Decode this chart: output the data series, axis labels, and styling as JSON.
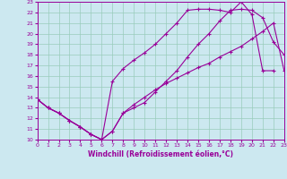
{
  "xlabel": "Windchill (Refroidissement éolien,°C)",
  "xlim": [
    0,
    23
  ],
  "ylim": [
    10,
    23
  ],
  "xticks": [
    0,
    1,
    2,
    3,
    4,
    5,
    6,
    7,
    8,
    9,
    10,
    11,
    12,
    13,
    14,
    15,
    16,
    17,
    18,
    19,
    20,
    21,
    22,
    23
  ],
  "yticks": [
    10,
    11,
    12,
    13,
    14,
    15,
    16,
    17,
    18,
    19,
    20,
    21,
    22,
    23
  ],
  "bg_color": "#cce8f0",
  "line_color": "#990099",
  "grid_color": "#99ccbb",
  "line1_x": [
    0,
    1,
    2,
    3,
    4,
    5,
    6,
    7,
    8,
    9,
    10,
    11,
    12,
    13,
    14,
    15,
    16,
    17,
    18,
    19,
    20,
    21,
    22,
    23
  ],
  "line1_y": [
    13.8,
    13.0,
    12.5,
    11.8,
    11.2,
    10.5,
    10.0,
    10.8,
    12.5,
    13.0,
    13.5,
    14.5,
    15.5,
    16.5,
    17.8,
    19.0,
    20.0,
    21.2,
    22.2,
    22.3,
    22.2,
    21.5,
    19.2,
    18.0
  ],
  "line2_x": [
    0,
    1,
    2,
    3,
    4,
    5,
    6,
    7,
    8,
    9,
    10,
    11,
    12,
    13,
    14,
    15,
    16,
    17,
    18,
    19,
    20,
    21,
    22
  ],
  "line2_y": [
    13.8,
    13.0,
    12.5,
    11.8,
    11.2,
    10.5,
    10.0,
    15.5,
    16.7,
    17.5,
    18.2,
    19.0,
    20.0,
    21.0,
    22.2,
    22.3,
    22.3,
    22.2,
    22.0,
    23.0,
    21.8,
    16.5,
    16.5
  ],
  "line3_x": [
    0,
    1,
    2,
    3,
    4,
    5,
    6,
    7,
    8,
    9,
    10,
    11,
    12,
    13,
    14,
    15,
    16,
    17,
    18,
    19,
    20,
    21,
    22,
    23
  ],
  "line3_y": [
    13.8,
    13.0,
    12.5,
    11.8,
    11.2,
    10.5,
    10.0,
    10.8,
    12.5,
    13.3,
    14.0,
    14.7,
    15.3,
    15.8,
    16.3,
    16.8,
    17.2,
    17.8,
    18.3,
    18.8,
    19.5,
    20.2,
    21.0,
    16.5
  ]
}
